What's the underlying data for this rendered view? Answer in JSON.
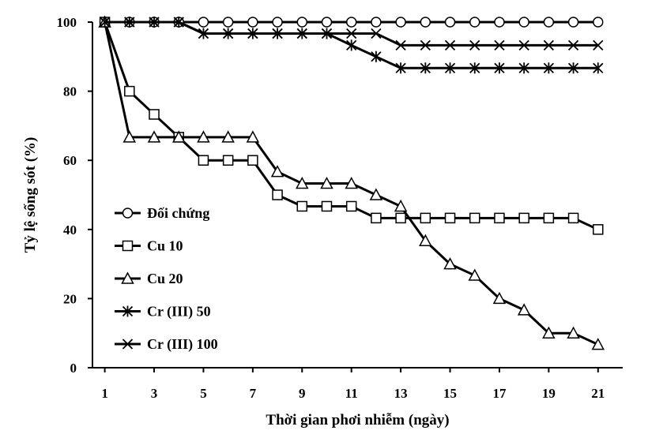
{
  "chart_data": {
    "type": "line",
    "title": "",
    "xlabel": "Thời gian phơi nhiễm (ngày)",
    "ylabel": "Tỷ lệ sống sót (%)",
    "xlim": [
      0.5,
      22
    ],
    "ylim": [
      0,
      100
    ],
    "xticks": [
      1,
      3,
      5,
      7,
      9,
      11,
      13,
      15,
      17,
      19,
      21
    ],
    "yticks": [
      0,
      20,
      40,
      60,
      80,
      100
    ],
    "grid": false,
    "legend": "left-center",
    "x": [
      1,
      2,
      3,
      4,
      5,
      6,
      7,
      8,
      9,
      10,
      11,
      12,
      13,
      14,
      15,
      16,
      17,
      18,
      19,
      20,
      21
    ],
    "series": [
      {
        "name": "Đối chứng",
        "marker": "circle",
        "values": [
          100,
          100,
          100,
          100,
          100,
          100,
          100,
          100,
          100,
          100,
          100,
          100,
          100,
          100,
          100,
          100,
          100,
          100,
          100,
          100,
          100
        ]
      },
      {
        "name": "Cu 10",
        "marker": "square",
        "values": [
          100,
          80,
          73.3,
          66.7,
          60,
          60,
          60,
          50,
          46.7,
          46.7,
          46.7,
          43.3,
          43.3,
          43.3,
          43.3,
          43.3,
          43.3,
          43.3,
          43.3,
          43.3,
          40
        ]
      },
      {
        "name": "Cu 20",
        "marker": "triangle",
        "values": [
          100,
          66.7,
          66.7,
          66.7,
          66.7,
          66.7,
          66.7,
          56.7,
          53.3,
          53.3,
          53.3,
          50,
          46.7,
          36.7,
          30,
          26.7,
          20,
          16.7,
          10,
          10,
          6.7
        ]
      },
      {
        "name": "Cr (III) 50",
        "marker": "asterisk",
        "values": [
          100,
          100,
          100,
          100,
          96.7,
          96.7,
          96.7,
          96.7,
          96.7,
          96.7,
          93.3,
          90,
          86.7,
          86.7,
          86.7,
          86.7,
          86.7,
          86.7,
          86.7,
          86.7,
          86.7
        ]
      },
      {
        "name": "Cr (III) 100",
        "marker": "x",
        "values": [
          100,
          100,
          100,
          100,
          96.7,
          96.7,
          96.7,
          96.7,
          96.7,
          96.7,
          96.7,
          96.7,
          93.3,
          93.3,
          93.3,
          93.3,
          93.3,
          93.3,
          93.3,
          93.3,
          93.3
        ]
      }
    ],
    "colors": {
      "line": "#000000",
      "marker_fill": "#ffffff"
    }
  }
}
